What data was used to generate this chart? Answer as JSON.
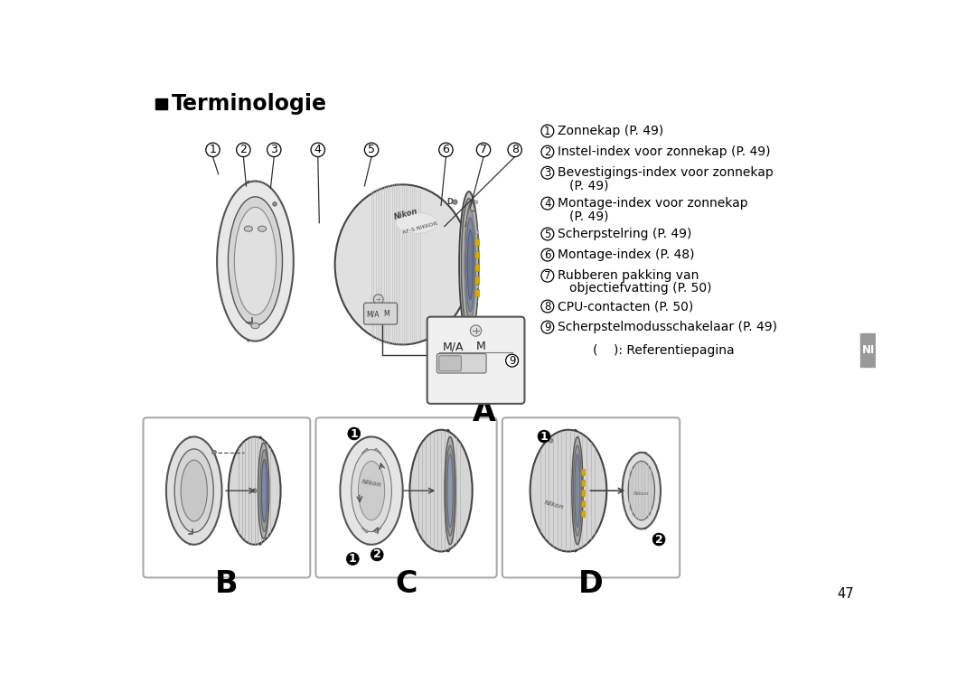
{
  "title": "Terminologie",
  "bg_color": "#ffffff",
  "text_color": "#000000",
  "page_number": "47",
  "ni_tab_color": "#666666",
  "legend_items": [
    {
      "num": "1",
      "text": "Zonnekap (P. 49)"
    },
    {
      "num": "2",
      "text": "Instel-index voor zonnekap (P. 49)"
    },
    {
      "num": "3",
      "text": "Bevestigings-index voor zonnekap",
      "text2": "(P. 49)"
    },
    {
      "num": "4",
      "text": "Montage-index voor zonnekap",
      "text2": "(P. 49)"
    },
    {
      "num": "5",
      "text": "Scherpstelring (P. 49)"
    },
    {
      "num": "6",
      "text": "Montage-index (P. 48)"
    },
    {
      "num": "7",
      "text": "Rubberen pakking van",
      "text2": "objectiefvatting (P. 50)"
    },
    {
      "num": "8",
      "text": "CPU-contacten (P. 50)"
    },
    {
      "num": "9",
      "text": "Scherpstelmodusschakelaar (P. 49)"
    },
    {
      "num": "",
      "text": "(    ): Referentiepagina"
    }
  ],
  "callout_nums": [
    "1",
    "2",
    "3",
    "4",
    "5",
    "6",
    "7",
    "8"
  ],
  "bottom_labels": [
    "B",
    "C",
    "D"
  ]
}
